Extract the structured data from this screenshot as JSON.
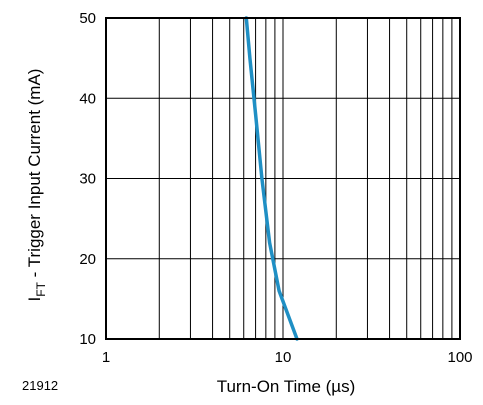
{
  "figure_id": "21912",
  "chart_data": {
    "type": "line",
    "xlabel": "Turn-On Time (µs)",
    "ylabel": {
      "symbol": "I",
      "subscript": "FT",
      "text": " - Trigger Input Current (mA)"
    },
    "x_scale": "log",
    "xlim": [
      1,
      100
    ],
    "ylim": [
      10,
      50
    ],
    "x_tick_labels": [
      {
        "value": 1,
        "label": "1"
      },
      {
        "value": 10,
        "label": "10"
      },
      {
        "value": 100,
        "label": "100"
      }
    ],
    "y_tick_labels": [
      {
        "value": 10,
        "label": "10"
      },
      {
        "value": 20,
        "label": "20"
      },
      {
        "value": 30,
        "label": "30"
      },
      {
        "value": 40,
        "label": "40"
      },
      {
        "value": 50,
        "label": "50"
      }
    ],
    "grid": true,
    "series": [
      {
        "color": "#1f8fc4",
        "x": [
          6.2,
          6.5,
          7.0,
          7.6,
          8.4,
          9.5,
          12.0
        ],
        "y": [
          50,
          45,
          38,
          30,
          22,
          16,
          10
        ]
      }
    ]
  }
}
